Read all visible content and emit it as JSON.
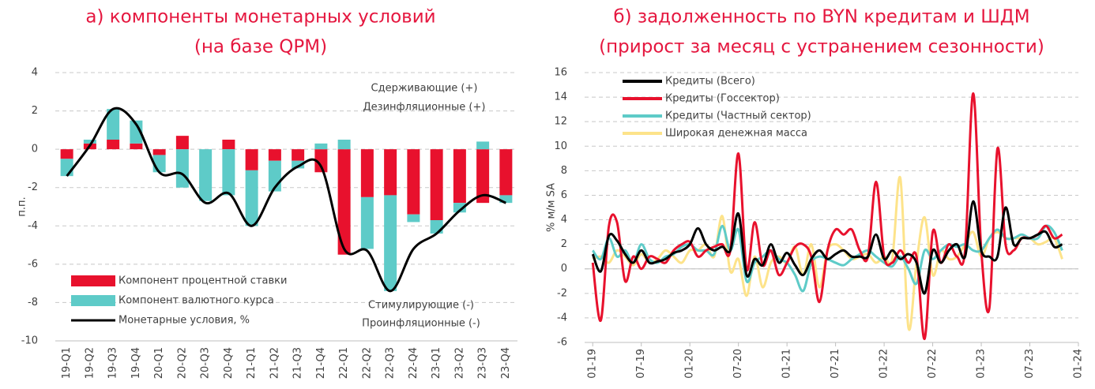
{
  "chart_data": [
    {
      "type": "bar",
      "title": [
        "а) компоненты монетарных условий",
        "(на базе QPM)"
      ],
      "ylabel": "п.п.",
      "annotations": [
        "Сдерживающие (+)",
        "Дезинфляционные (+)",
        "Стимулирующие (-)",
        "Проинфляционные (-)"
      ],
      "categories": [
        "19-Q1",
        "19-Q2",
        "19-Q3",
        "19-Q4",
        "20-Q1",
        "20-Q2",
        "20-Q3",
        "20-Q4",
        "21-Q1",
        "21-Q2",
        "21-Q3",
        "21-Q4",
        "22-Q1",
        "22-Q2",
        "22-Q3",
        "22-Q4",
        "23-Q1",
        "23-Q2",
        "23-Q3",
        "23-Q4"
      ],
      "series": [
        {
          "name": "Компонент процентной ставки",
          "color": "#e8112d",
          "type": "bar",
          "values": [
            -0.5,
            0.3,
            0.5,
            0.3,
            -0.3,
            0.7,
            0,
            0.5,
            -1.1,
            -0.6,
            -0.6,
            -1.2,
            -5.5,
            -2.5,
            -2.4,
            -3.4,
            -3.7,
            -2.8,
            -2.8,
            -2.4
          ]
        },
        {
          "name": "Компонент валютного курса",
          "color": "#5ecbc8",
          "type": "bar",
          "values": [
            -0.9,
            0.2,
            1.6,
            1.2,
            -0.9,
            -2.0,
            -2.7,
            -2.4,
            -2.9,
            -1.6,
            -0.4,
            0.3,
            0.5,
            -2.7,
            -5.0,
            -0.4,
            -0.7,
            -0.5,
            0.4,
            -0.4
          ]
        },
        {
          "name": "Монетарные условия, %",
          "color": "#000000",
          "type": "line",
          "values": [
            -1.4,
            0.2,
            2.1,
            1.3,
            -1.2,
            -1.3,
            -2.8,
            -2.3,
            -4.0,
            -2.0,
            -0.9,
            -0.9,
            -5.2,
            -5.3,
            -7.4,
            -5.2,
            -4.4,
            -3.2,
            -2.4,
            -2.8
          ]
        }
      ],
      "ylim": [
        -10,
        4
      ],
      "yticks": [
        -10,
        -8,
        -6,
        -4,
        -2,
        0,
        2,
        4
      ],
      "grid": true,
      "legend": "lower left"
    },
    {
      "type": "line",
      "title": [
        "б) задолженность по BYN кредитам и ШДМ",
        "(прирост за месяц с устранением сезонности)"
      ],
      "ylabel": "% м/м SA",
      "x": [
        "2019-01",
        "2019-02",
        "2019-03",
        "2019-04",
        "2019-05",
        "2019-06",
        "2019-07",
        "2019-08",
        "2019-09",
        "2019-10",
        "2019-11",
        "2019-12",
        "2020-01",
        "2020-02",
        "2020-03",
        "2020-04",
        "2020-05",
        "2020-06",
        "2020-07",
        "2020-08",
        "2020-09",
        "2020-10",
        "2020-11",
        "2020-12",
        "2021-01",
        "2021-02",
        "2021-03",
        "2021-04",
        "2021-05",
        "2021-06",
        "2021-07",
        "2021-08",
        "2021-09",
        "2021-10",
        "2021-11",
        "2021-12",
        "2022-01",
        "2022-02",
        "2022-03",
        "2022-04",
        "2022-05",
        "2022-06",
        "2022-07",
        "2022-08",
        "2022-09",
        "2022-10",
        "2022-11",
        "2022-12",
        "2023-01",
        "2023-02",
        "2023-03",
        "2023-04",
        "2023-05",
        "2023-06",
        "2023-07",
        "2023-08",
        "2023-09",
        "2023-10",
        "2023-11"
      ],
      "series": [
        {
          "name": "Кредиты (Всего)",
          "color": "#000000",
          "values": [
            1.2,
            -0.2,
            2.7,
            2.3,
            1.2,
            0.5,
            1.5,
            0.5,
            0.6,
            0.8,
            1.3,
            1.5,
            2.0,
            3.3,
            2.0,
            1.5,
            1.8,
            1.5,
            4.5,
            -0.5,
            0.8,
            0.3,
            2.0,
            0.5,
            1.3,
            0.3,
            -0.5,
            0.8,
            1.5,
            0.8,
            1.2,
            1.5,
            1.0,
            1.0,
            1.0,
            2.8,
            0.8,
            1.5,
            0.8,
            1.2,
            0.5,
            -2.0,
            1.5,
            0.5,
            1.5,
            2.0,
            1.0,
            5.5,
            1.5,
            1.0,
            1.0,
            5.0,
            2.0,
            2.5,
            2.5,
            2.8,
            3.0,
            1.8,
            2.0
          ]
        },
        {
          "name": "Кредиты (Госсектор)",
          "color": "#e8112d",
          "values": [
            0.5,
            -4.2,
            3.5,
            3.8,
            -1.0,
            1.0,
            0.0,
            1.0,
            0.8,
            0.5,
            1.5,
            2.0,
            2.2,
            1.0,
            1.5,
            1.8,
            2.0,
            1.5,
            9.4,
            0.0,
            3.8,
            0.3,
            1.5,
            -0.5,
            0.5,
            1.8,
            2.0,
            1.0,
            -2.7,
            1.5,
            3.2,
            2.8,
            3.2,
            1.5,
            1.0,
            7.1,
            1.0,
            0.5,
            1.5,
            0.5,
            1.0,
            -5.7,
            3.0,
            0.5,
            2.0,
            1.0,
            1.5,
            14.3,
            1.5,
            -3.2,
            9.8,
            2.0,
            1.5,
            2.5,
            2.5,
            2.8,
            3.5,
            2.5,
            2.8
          ]
        },
        {
          "name": "Кредиты (Частный сектор)",
          "color": "#5ecbc8",
          "values": [
            1.5,
            0.8,
            2.5,
            1.0,
            1.5,
            0.5,
            2.0,
            0.8,
            0.5,
            1.0,
            1.2,
            1.8,
            2.0,
            1.5,
            1.5,
            1.2,
            3.5,
            1.5,
            3.2,
            -1.0,
            0.5,
            1.0,
            1.5,
            0.8,
            0.5,
            -0.5,
            -1.8,
            0.5,
            1.0,
            0.8,
            0.5,
            0.3,
            0.8,
            1.2,
            1.5,
            1.0,
            0.5,
            0.2,
            1.0,
            0.0,
            -1.2,
            1.5,
            0.8,
            1.5,
            2.0,
            1.8,
            2.0,
            1.5,
            1.5,
            2.5,
            3.2,
            2.5,
            2.5,
            2.8,
            2.5,
            2.5,
            3.5,
            3.0,
            1.5
          ]
        },
        {
          "name": "Широкая денежная масса",
          "color": "#fde38a",
          "values": [
            0.8,
            1.0,
            0.5,
            1.5,
            1.0,
            0.3,
            1.2,
            0.5,
            0.8,
            1.5,
            1.0,
            0.5,
            1.5,
            1.5,
            2.0,
            1.0,
            4.3,
            -0.2,
            0.8,
            -2.2,
            1.0,
            -1.5,
            0.5,
            1.0,
            0.5,
            1.8,
            -0.5,
            2.0,
            -1.5,
            1.5,
            2.0,
            1.5,
            0.8,
            1.0,
            1.2,
            0.5,
            1.0,
            0.8,
            7.4,
            -4.8,
            0.5,
            4.2,
            -0.5,
            1.5,
            0.8,
            1.0,
            2.0,
            3.0,
            1.0,
            2.5,
            3.0,
            2.5,
            2.5,
            2.5,
            2.5,
            2.0,
            2.2,
            2.5,
            0.8
          ]
        }
      ],
      "xlim": [
        "2018-12",
        "2024-01"
      ],
      "xticks": [
        {
          "value": "2019-01",
          "label": "01-19"
        },
        {
          "value": "2019-07",
          "label": "07-19"
        },
        {
          "value": "2020-01",
          "label": "01-20"
        },
        {
          "value": "2020-07",
          "label": "07-20"
        },
        {
          "value": "2021-01",
          "label": "01-21"
        },
        {
          "value": "2021-07",
          "label": "07-21"
        },
        {
          "value": "2022-01",
          "label": "01-22"
        },
        {
          "value": "2022-07",
          "label": "07-22"
        },
        {
          "value": "2023-01",
          "label": "01-23"
        },
        {
          "value": "2023-07",
          "label": "07-23"
        },
        {
          "value": "2024-01",
          "label": "01-24"
        }
      ],
      "ylim": [
        -6,
        16
      ],
      "yticks": [
        -6,
        -4,
        -2,
        0,
        2,
        4,
        6,
        8,
        10,
        12,
        14,
        16
      ],
      "grid": true,
      "legend": "upper left"
    }
  ]
}
